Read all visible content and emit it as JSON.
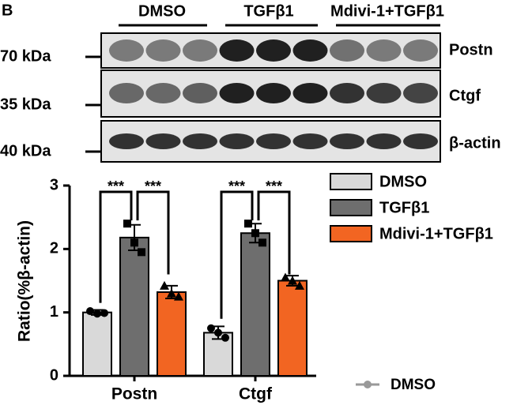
{
  "panel_label": "B",
  "blot": {
    "groups": [
      "DMSO",
      "TGFβ1",
      "Mdivi-1+TGFβ1"
    ],
    "markers": [
      "70 kDa",
      "35 kDa",
      "40 kDa"
    ],
    "proteins": [
      "Postn",
      "Ctgf",
      "β-actin"
    ]
  },
  "chart_data": {
    "type": "bar",
    "y_label": "Ratio(%β-actin)",
    "categories": [
      "Postn",
      "Ctgf"
    ],
    "series": [
      {
        "name": "DMSO",
        "color": "#d9d9d9",
        "values": [
          1.0,
          0.68
        ],
        "errors": [
          0.04,
          0.1
        ],
        "points": [
          [
            1.02,
            0.98,
            0.99
          ],
          [
            0.75,
            0.68,
            0.6
          ]
        ]
      },
      {
        "name": "TGFβ1",
        "color": "#6e6e6e",
        "values": [
          2.18,
          2.25
        ],
        "errors": [
          0.2,
          0.15
        ],
        "points": [
          [
            2.4,
            2.1,
            1.95
          ],
          [
            2.4,
            2.25,
            2.1
          ]
        ]
      },
      {
        "name": "Mdivi-1+TGFβ1",
        "color": "#f26522",
        "values": [
          1.32,
          1.5
        ],
        "errors": [
          0.1,
          0.08
        ],
        "points": [
          [
            1.42,
            1.3,
            1.25
          ],
          [
            1.55,
            1.5,
            1.42
          ]
        ]
      }
    ],
    "ylim": [
      0,
      3
    ],
    "yticks": [
      0,
      1,
      2,
      3
    ],
    "annotations": [
      "***",
      "***",
      "***",
      "***"
    ],
    "legend": "upper right",
    "extra_legend": "DMSO"
  }
}
